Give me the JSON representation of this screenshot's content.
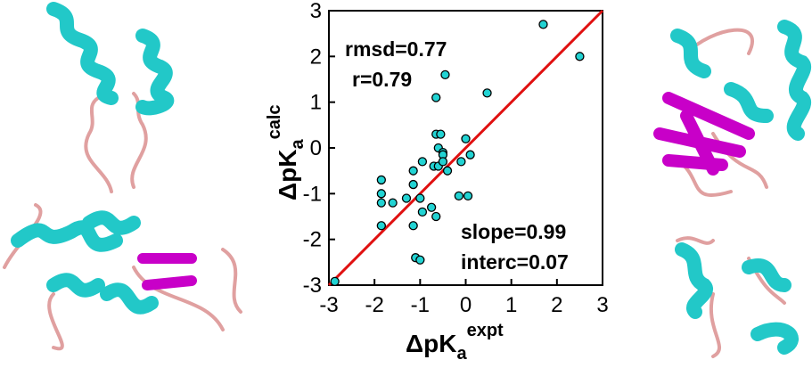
{
  "chart_data": {
    "type": "scatter",
    "x_label": {
      "main": "ΔpK",
      "sub": "a",
      "sup": "expt"
    },
    "y_label": {
      "main": "ΔpK",
      "sub": "a",
      "sup": "calc"
    },
    "annotations": [
      "rmsd=0.77",
      "r=0.79",
      "slope=0.99",
      "interc=0.07"
    ],
    "x": [
      -2.87,
      1.7,
      2.5,
      -0.45,
      0.47,
      -0.65,
      -0.65,
      -0.55,
      0,
      -0.6,
      -0.5,
      -0.5,
      0.1,
      -0.1,
      -0.95,
      -0.7,
      -0.6,
      -1.15,
      -0.4,
      -0.5,
      -1.85,
      -1.15,
      -0.15,
      0.05,
      -1.85,
      -1.6,
      -1.85,
      -1.3,
      -1.0,
      -0.75,
      -0.95,
      -0.65,
      -1.15,
      -1.85,
      -1.1,
      -1.0
    ],
    "y": [
      -2.92,
      2.7,
      2.0,
      1.6,
      1.2,
      1.1,
      0.3,
      0.3,
      0.2,
      0,
      -0.1,
      -0.15,
      -0.15,
      -0.3,
      -0.3,
      -0.4,
      -0.4,
      -0.5,
      -0.5,
      -0.3,
      -0.7,
      -0.8,
      -1.05,
      -1.05,
      -1.0,
      -1.2,
      -1.2,
      -1.1,
      -1.1,
      -1.3,
      -1.4,
      -1.5,
      -1.7,
      -1.7,
      -2.4,
      -2.45
    ],
    "color": "#22d3d3",
    "line_color": "#e01010",
    "xlim": [
      -3,
      3
    ],
    "ylim": [
      -3,
      3
    ],
    "xticks": [
      -3,
      -2,
      -1,
      0,
      1,
      2,
      3
    ],
    "yticks": [
      -3,
      -2,
      -1,
      0,
      1,
      2,
      3
    ]
  }
}
